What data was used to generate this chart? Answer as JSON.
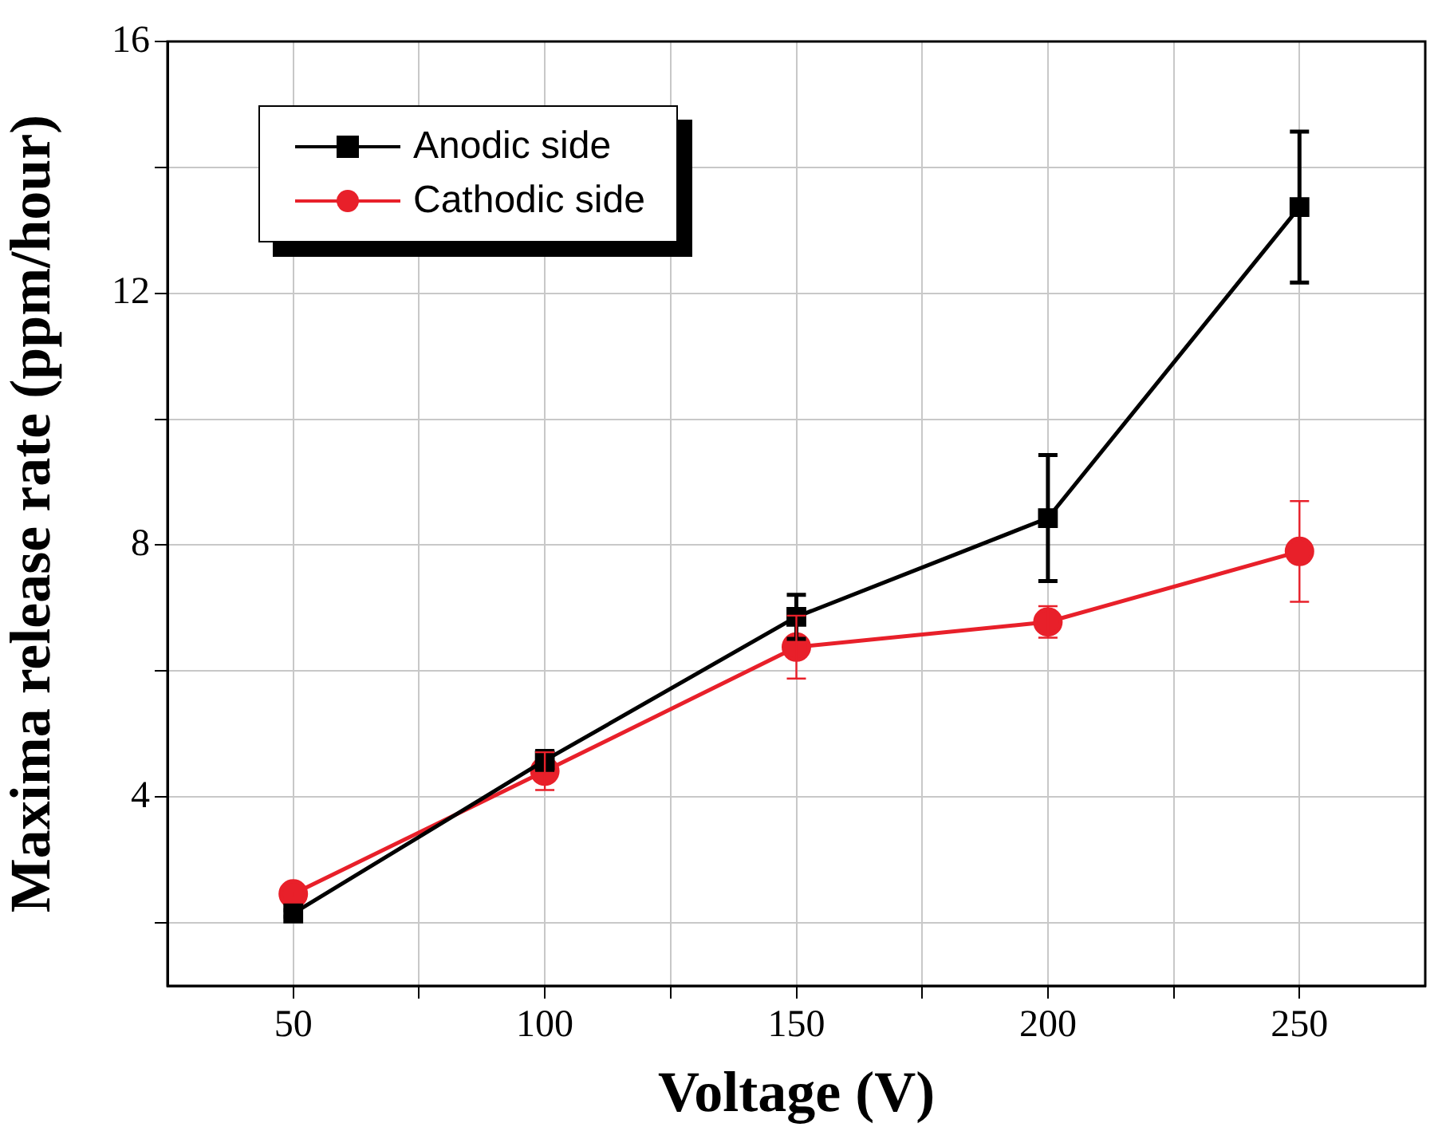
{
  "chart_data": {
    "type": "line",
    "xlabel": "Voltage (V)",
    "ylabel": "Maxima release rate (ppm/hour)",
    "x": [
      50,
      100,
      150,
      200,
      250
    ],
    "xlim": [
      25,
      275
    ],
    "xticks": [
      50,
      {
        "value": 75,
        "label": null
      },
      100,
      {
        "value": 125,
        "label": null
      },
      150,
      {
        "value": 175,
        "label": null
      },
      200,
      {
        "value": 225,
        "label": null
      },
      250
    ],
    "ylim": [
      1,
      16
    ],
    "yticks": [
      {
        "value": 2,
        "label": null
      },
      4,
      {
        "value": 6,
        "label": null
      },
      8,
      {
        "value": 10,
        "label": null
      },
      12,
      {
        "value": 14,
        "label": null
      },
      16
    ],
    "grid": true,
    "legend": "top left",
    "line_style": "solid",
    "series": [
      {
        "name": "Anodic side",
        "color": "#000000",
        "marker": "square",
        "values": [
          2.15,
          4.58,
          6.86,
          8.43,
          13.37
        ],
        "errors": [
          0.05,
          0.15,
          0.35,
          1.0,
          1.2
        ]
      },
      {
        "name": "Cathodic side",
        "color": "#e8202a",
        "marker": "circle",
        "values": [
          2.46,
          4.41,
          6.38,
          6.78,
          7.9
        ],
        "errors": [
          0.05,
          0.3,
          0.5,
          0.25,
          0.8
        ]
      }
    ]
  }
}
